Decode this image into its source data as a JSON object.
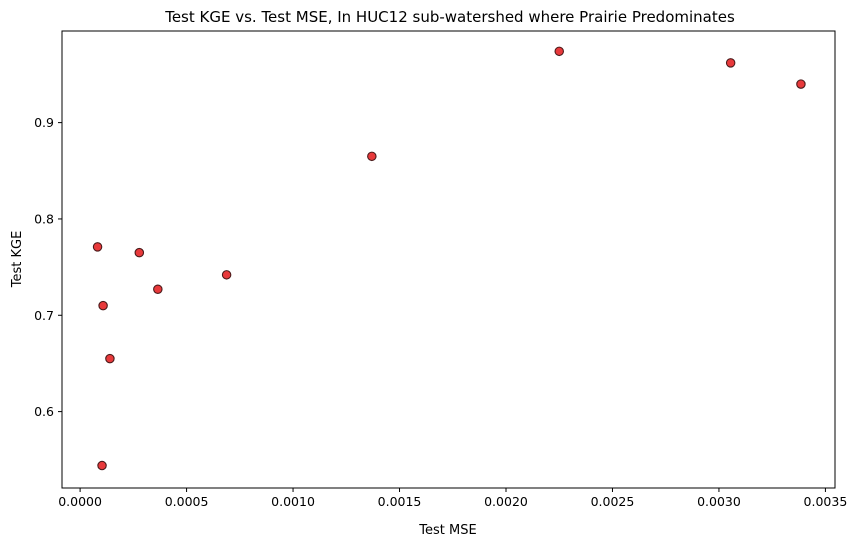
{
  "chart_data": {
    "type": "scatter",
    "title": "Test KGE vs. Test MSE, In HUC12 sub-watershed where Prairie Predominates",
    "xlabel": "Test MSE",
    "ylabel": "Test KGE",
    "xlim": [
      -8.5e-05,
      0.003545
    ],
    "ylim": [
      0.5207,
      0.9951
    ],
    "x_ticks": [
      0.0,
      0.0005,
      0.001,
      0.0015,
      0.002,
      0.0025,
      0.003,
      0.0035
    ],
    "x_tick_labels": [
      "0.0000",
      "0.0005",
      "0.0010",
      "0.0015",
      "0.0020",
      "0.0025",
      "0.0030",
      "0.0035"
    ],
    "y_ticks": [
      0.6,
      0.7,
      0.8,
      0.9
    ],
    "y_tick_labels": [
      "0.6",
      "0.7",
      "0.8",
      "0.9"
    ],
    "grid": false,
    "legend": false,
    "marker_fill": "#e8393b",
    "marker_edge": "#4a1a1a",
    "points": [
      {
        "x": 8.2e-05,
        "y": 0.771
      },
      {
        "x": 0.000108,
        "y": 0.71
      },
      {
        "x": 0.000103,
        "y": 0.544
      },
      {
        "x": 0.00014,
        "y": 0.655
      },
      {
        "x": 0.000278,
        "y": 0.765
      },
      {
        "x": 0.000365,
        "y": 0.727
      },
      {
        "x": 0.000688,
        "y": 0.742
      },
      {
        "x": 0.00137,
        "y": 0.865
      },
      {
        "x": 0.00225,
        "y": 0.974
      },
      {
        "x": 0.003055,
        "y": 0.962
      },
      {
        "x": 0.003385,
        "y": 0.94
      }
    ]
  }
}
